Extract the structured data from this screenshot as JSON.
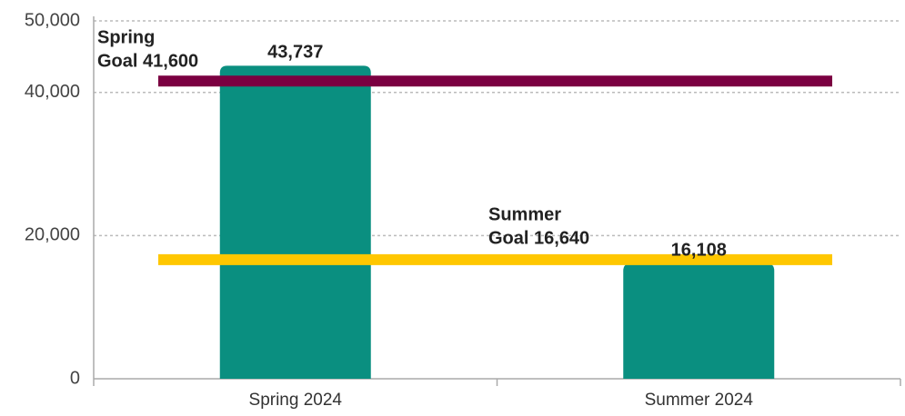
{
  "chart_data": {
    "type": "bar",
    "categories": [
      "Spring 2024",
      "Summer 2024"
    ],
    "values": [
      43737,
      16108
    ],
    "value_labels": [
      "43,737",
      "16,108"
    ],
    "color": "#0a8f80",
    "ylim": [
      0,
      50000
    ],
    "yticks": [
      0,
      {
        "value": 20000,
        "label": "20,000"
      },
      {
        "value": 40000,
        "label": "40,000"
      },
      {
        "value": 50000,
        "label": "50,000"
      }
    ],
    "grid": true,
    "goals": [
      {
        "name": "Spring",
        "label": "Goal 41,600",
        "value": 41600,
        "color": "#7b0041"
      },
      {
        "name": "Summer",
        "label": "Goal 16,640",
        "value": 16640,
        "color": "#ffc700"
      }
    ]
  }
}
